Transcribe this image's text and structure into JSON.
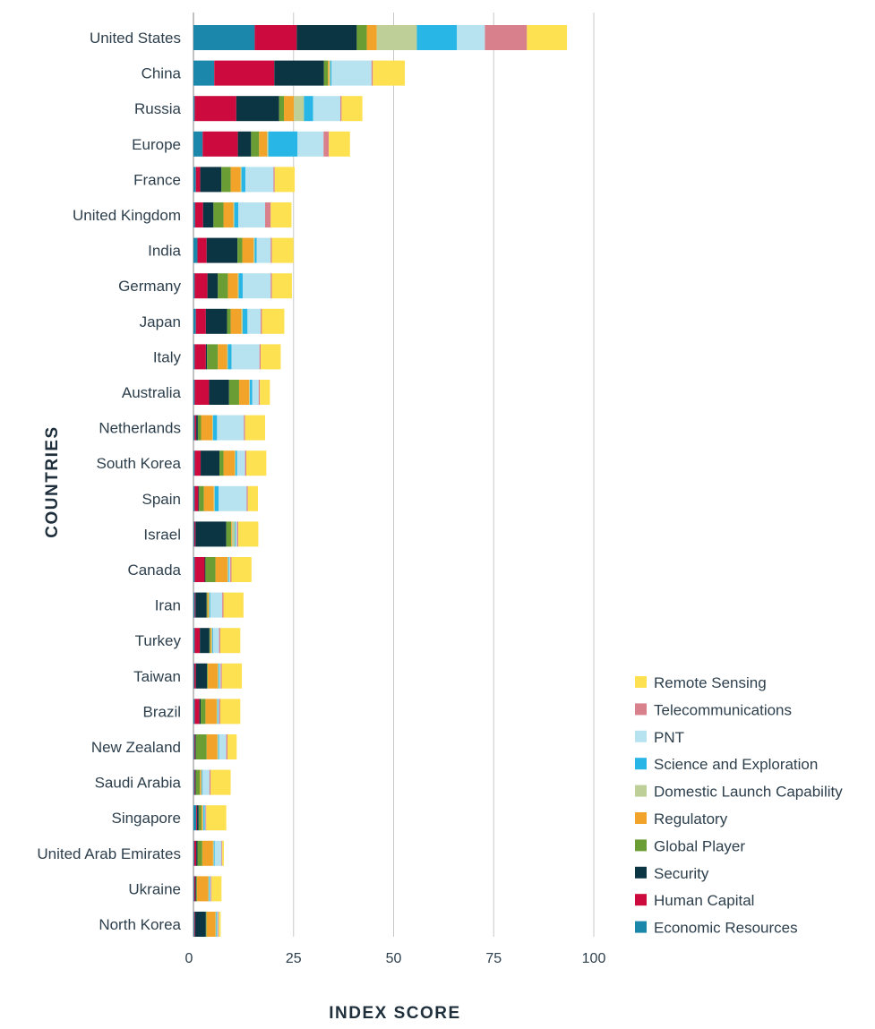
{
  "chart_data": {
    "type": "bar",
    "orientation": "horizontal",
    "stacked": true,
    "xlabel": "INDEX SCORE",
    "ylabel": "COUNTRIES",
    "xlim": [
      0,
      100
    ],
    "xticks": [
      0,
      25,
      50,
      75,
      100
    ],
    "grid": "vertical",
    "legend_position": "bottom-right",
    "categories": [
      "United States",
      "China",
      "Russia",
      "Europe",
      "France",
      "United Kingdom",
      "India",
      "Germany",
      "Japan",
      "Italy",
      "Australia",
      "Netherlands",
      "South Korea",
      "Spain",
      "Israel",
      "Canada",
      "Iran",
      "Turkey",
      "Taiwan",
      "Brazil",
      "New Zealand",
      "Saudi Arabia",
      "Singapore",
      "United Arab Emirates",
      "Ukraine",
      "North Korea"
    ],
    "series": [
      {
        "name": "Economic Resources",
        "color": "#1a87ab",
        "values": [
          15.3,
          5.2,
          0.3,
          2.3,
          0.6,
          0.4,
          1.0,
          0.3,
          0.6,
          0.3,
          0.3,
          0.3,
          0.3,
          0.3,
          0.2,
          0.3,
          0.3,
          0.3,
          0.2,
          0.3,
          0.2,
          0.2,
          0.7,
          0.2,
          0.2,
          0.2
        ]
      },
      {
        "name": "Human Capital",
        "color": "#cc0a3d",
        "values": [
          10.5,
          15.0,
          10.4,
          8.8,
          1.1,
          2.0,
          2.3,
          3.2,
          2.5,
          2.8,
          3.6,
          0.4,
          1.5,
          0.9,
          0.3,
          2.5,
          0.2,
          1.3,
          0.4,
          1.2,
          0.2,
          0.2,
          0.2,
          0.5,
          0.3,
          0.2
        ]
      },
      {
        "name": "Security",
        "color": "#0c3544",
        "values": [
          15.0,
          12.4,
          10.7,
          3.3,
          5.3,
          2.6,
          7.7,
          2.6,
          5.3,
          0.3,
          5.0,
          0.4,
          4.7,
          0.2,
          7.7,
          0.2,
          2.8,
          2.4,
          2.8,
          0.3,
          0.2,
          0.2,
          0.4,
          0.3,
          0.2,
          2.7
        ]
      },
      {
        "name": "Global Player",
        "color": "#6a9e35",
        "values": [
          2.5,
          1.0,
          1.2,
          2.0,
          2.3,
          2.5,
          1.2,
          2.5,
          0.9,
          2.7,
          2.5,
          0.8,
          1.0,
          1.2,
          1.2,
          2.5,
          0.2,
          0.2,
          0.2,
          1.2,
          2.7,
          1.0,
          0.7,
          1.2,
          0.2,
          0.2
        ]
      },
      {
        "name": "Regulatory",
        "color": "#f2a42a",
        "values": [
          2.5,
          0.3,
          2.5,
          2.0,
          2.5,
          2.5,
          2.8,
          2.5,
          2.7,
          2.3,
          2.5,
          2.8,
          2.8,
          2.5,
          0.2,
          3.0,
          0.3,
          0.3,
          2.5,
          2.8,
          2.7,
          0.3,
          0.3,
          2.7,
          2.8,
          2.2
        ]
      },
      {
        "name": "Domestic Launch Capability",
        "color": "#bed098",
        "values": [
          10.0,
          0.3,
          2.5,
          0.3,
          0.2,
          0.2,
          0.3,
          0.2,
          0.3,
          0.2,
          0.2,
          0.2,
          0.2,
          0.2,
          0.8,
          0.2,
          0.2,
          0.2,
          0.2,
          0.2,
          0.2,
          0.2,
          0.2,
          0.2,
          0.2,
          0.2
        ]
      },
      {
        "name": "Science and Exploration",
        "color": "#28b6e6",
        "values": [
          10.0,
          0.3,
          2.3,
          7.3,
          1.0,
          1.0,
          0.5,
          1.0,
          1.2,
          0.9,
          0.6,
          1.0,
          0.4,
          1.0,
          0.2,
          0.2,
          0.2,
          0.2,
          0.2,
          0.2,
          0.2,
          0.2,
          0.3,
          0.2,
          0.2,
          0.2
        ]
      },
      {
        "name": "PNT",
        "color": "#b7e2ef",
        "values": [
          7.0,
          10.0,
          6.8,
          6.5,
          7.0,
          6.7,
          3.5,
          7.0,
          3.3,
          7.0,
          1.6,
          6.7,
          2.0,
          7.0,
          0.3,
          0.3,
          3.0,
          1.5,
          0.3,
          0.2,
          1.8,
          1.7,
          0.2,
          1.7,
          0.2,
          0.2
        ]
      },
      {
        "name": "Telecommunications",
        "color": "#d9808d",
        "values": [
          10.5,
          0.3,
          0.3,
          1.3,
          0.3,
          1.4,
          0.3,
          0.3,
          0.3,
          0.3,
          0.3,
          0.3,
          0.3,
          0.3,
          0.3,
          0.3,
          0.3,
          0.3,
          0.3,
          0.3,
          0.3,
          0.3,
          0.2,
          0.2,
          0.2,
          0.2
        ]
      },
      {
        "name": "Remote Sensing",
        "color": "#fde151",
        "values": [
          10.0,
          8.0,
          5.2,
          5.3,
          5.0,
          5.2,
          5.4,
          5.0,
          5.6,
          5.0,
          2.5,
          5.0,
          5.0,
          2.5,
          5.0,
          5.0,
          5.0,
          5.0,
          5.0,
          5.0,
          2.3,
          5.0,
          5.0,
          0.4,
          2.5,
          0.5
        ]
      }
    ]
  }
}
